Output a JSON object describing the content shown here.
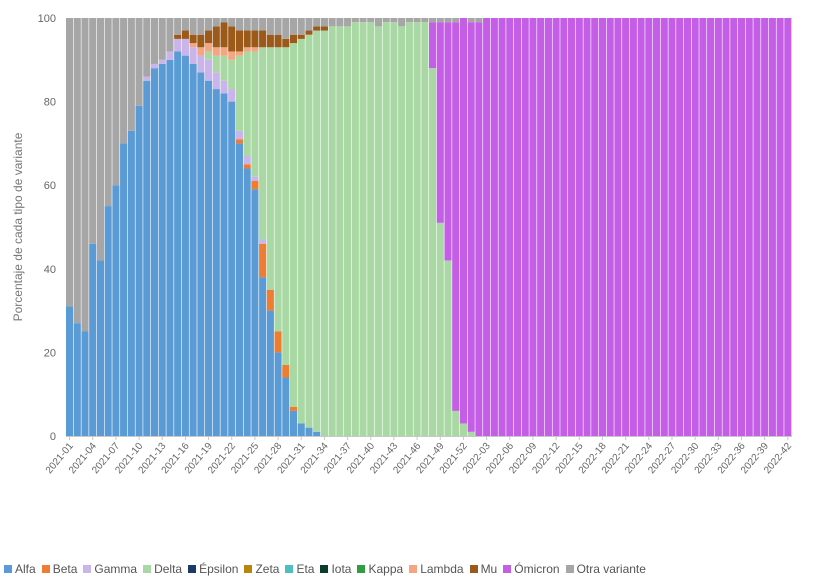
{
  "chart_data": {
    "type": "bar",
    "stacked": true,
    "ylabel": "Porcentaje de cada tipo de variante",
    "ylim": [
      0,
      100
    ],
    "yticks": [
      0,
      20,
      40,
      60,
      80,
      100
    ],
    "grid": false,
    "legend_position": "bottom",
    "weeks": [
      "2021-01",
      "2021-02",
      "2021-03",
      "2021-04",
      "2021-05",
      "2021-06",
      "2021-07",
      "2021-08",
      "2021-09",
      "2021-10",
      "2021-11",
      "2021-12",
      "2021-13",
      "2021-14",
      "2021-15",
      "2021-16",
      "2021-17",
      "2021-18",
      "2021-19",
      "2021-20",
      "2021-21",
      "2021-22",
      "2021-23",
      "2021-24",
      "2021-25",
      "2021-26",
      "2021-27",
      "2021-28",
      "2021-29",
      "2021-30",
      "2021-31",
      "2021-32",
      "2021-33",
      "2021-34",
      "2021-35",
      "2021-36",
      "2021-37",
      "2021-38",
      "2021-39",
      "2021-40",
      "2021-41",
      "2021-42",
      "2021-43",
      "2021-44",
      "2021-45",
      "2021-46",
      "2021-47",
      "2021-48",
      "2021-49",
      "2021-50",
      "2021-51",
      "2021-52",
      "2022-01",
      "2022-02",
      "2022-03",
      "2022-04",
      "2022-05",
      "2022-06",
      "2022-07",
      "2022-08",
      "2022-09",
      "2022-10",
      "2022-11",
      "2022-12",
      "2022-13",
      "2022-14",
      "2022-15",
      "2022-16",
      "2022-17",
      "2022-18",
      "2022-19",
      "2022-20",
      "2022-21",
      "2022-22",
      "2022-23",
      "2022-24",
      "2022-25",
      "2022-26",
      "2022-27",
      "2022-28",
      "2022-29",
      "2022-30",
      "2022-31",
      "2022-32",
      "2022-33",
      "2022-34",
      "2022-35",
      "2022-36",
      "2022-37",
      "2022-38",
      "2022-39",
      "2022-40",
      "2022-41",
      "2022-42"
    ],
    "tick_labels": [
      "2021-01",
      "2021-04",
      "2021-07",
      "2021-10",
      "2021-13",
      "2021-16",
      "2021-19",
      "2021-22",
      "2021-25",
      "2021-28",
      "2021-31",
      "2021-34",
      "2021-37",
      "2021-40",
      "2021-43",
      "2021-46",
      "2021-49",
      "2021-52",
      "2022-03",
      "2022-06",
      "2022-09",
      "2022-12",
      "2022-15",
      "2022-18",
      "2022-21",
      "2022-24",
      "2022-27",
      "2022-30",
      "2022-33",
      "2022-36",
      "2022-39",
      "2022-42"
    ],
    "series": [
      {
        "name": "Alfa",
        "color": "#5b9bd5",
        "values": [
          31,
          27,
          25,
          46,
          42,
          55,
          60,
          70,
          73,
          79,
          85,
          88,
          89,
          90,
          92,
          91,
          89,
          87,
          85,
          83,
          82,
          80,
          70,
          64,
          59,
          38,
          30,
          20,
          14,
          6,
          3,
          2,
          1,
          0,
          0,
          0,
          0,
          0,
          0,
          0,
          0,
          0,
          0,
          0,
          0,
          0,
          0,
          0,
          0,
          0,
          0,
          0,
          0,
          0,
          0,
          0,
          0,
          0,
          0,
          0,
          0,
          0,
          0,
          0,
          0,
          0,
          0,
          0,
          0,
          0,
          0,
          0,
          0,
          0,
          0,
          0,
          0,
          0,
          0,
          0,
          0,
          0,
          0,
          0,
          0,
          0,
          0,
          0,
          0,
          0,
          0,
          0,
          0,
          0
        ]
      },
      {
        "name": "Beta",
        "color": "#ed7d31",
        "values": [
          0,
          0,
          0,
          0,
          0,
          0,
          0,
          0,
          0,
          0,
          0,
          0,
          0,
          0,
          0,
          0,
          0,
          0,
          0,
          0,
          0,
          0,
          1,
          1,
          2,
          8,
          5,
          5,
          3,
          1,
          0,
          0,
          0,
          0,
          0,
          0,
          0,
          0,
          0,
          0,
          0,
          0,
          0,
          0,
          0,
          0,
          0,
          0,
          0,
          0,
          0,
          0,
          0,
          0,
          0,
          0,
          0,
          0,
          0,
          0,
          0,
          0,
          0,
          0,
          0,
          0,
          0,
          0,
          0,
          0,
          0,
          0,
          0,
          0,
          0,
          0,
          0,
          0,
          0,
          0,
          0,
          0,
          0,
          0,
          0,
          0,
          0,
          0,
          0,
          0,
          0,
          0,
          0,
          0
        ]
      },
      {
        "name": "Gamma",
        "color": "#c9b5ea",
        "values": [
          0,
          0,
          0,
          0,
          0,
          0,
          0,
          0,
          0,
          0,
          1,
          1,
          1,
          2,
          3,
          4,
          4,
          4,
          5,
          4,
          3,
          3,
          2,
          2,
          1,
          1,
          0,
          0,
          0,
          0,
          0,
          0,
          0,
          0,
          0,
          0,
          0,
          0,
          0,
          0,
          0,
          0,
          0,
          0,
          0,
          0,
          0,
          0,
          0,
          0,
          0,
          0,
          0,
          0,
          0,
          0,
          0,
          0,
          0,
          0,
          0,
          0,
          0,
          0,
          0,
          0,
          0,
          0,
          0,
          0,
          0,
          0,
          0,
          0,
          0,
          0,
          0,
          0,
          0,
          0,
          0,
          0,
          0,
          0,
          0,
          0,
          0,
          0,
          0,
          0,
          0,
          0,
          0,
          0
        ]
      },
      {
        "name": "Delta",
        "color": "#a9d8a4",
        "values": [
          0,
          0,
          0,
          0,
          0,
          0,
          0,
          0,
          0,
          0,
          0,
          0,
          0,
          0,
          0,
          0,
          0,
          0,
          2,
          4,
          6,
          7,
          18,
          25,
          30,
          46,
          58,
          68,
          76,
          87,
          92,
          94,
          96,
          97,
          98,
          98,
          98,
          99,
          99,
          99,
          98,
          99,
          99,
          98,
          99,
          99,
          99,
          88,
          51,
          42,
          6,
          3,
          1,
          0,
          0,
          0,
          0,
          0,
          0,
          0,
          0,
          0,
          0,
          0,
          0,
          0,
          0,
          0,
          0,
          0,
          0,
          0,
          0,
          0,
          0,
          0,
          0,
          0,
          0,
          0,
          0,
          0,
          0,
          0,
          0,
          0,
          0,
          0,
          0,
          0,
          0,
          0,
          0,
          0
        ]
      },
      {
        "name": "Épsilon",
        "color": "#1f3864",
        "values": [
          0,
          0,
          0,
          0,
          0,
          0,
          0,
          0,
          0,
          0,
          0,
          0,
          0,
          0,
          0,
          0,
          0,
          0,
          0,
          0,
          0,
          0,
          0,
          0,
          0,
          0,
          0,
          0,
          0,
          0,
          0,
          0,
          0,
          0,
          0,
          0,
          0,
          0,
          0,
          0,
          0,
          0,
          0,
          0,
          0,
          0,
          0,
          0,
          0,
          0,
          0,
          0,
          0,
          0,
          0,
          0,
          0,
          0,
          0,
          0,
          0,
          0,
          0,
          0,
          0,
          0,
          0,
          0,
          0,
          0,
          0,
          0,
          0,
          0,
          0,
          0,
          0,
          0,
          0,
          0,
          0,
          0,
          0,
          0,
          0,
          0,
          0,
          0,
          0,
          0,
          0,
          0,
          0,
          0
        ]
      },
      {
        "name": "Zeta",
        "color": "#b8860b",
        "values": [
          0,
          0,
          0,
          0,
          0,
          0,
          0,
          0,
          0,
          0,
          0,
          0,
          0,
          0,
          0,
          0,
          0,
          0,
          0,
          0,
          0,
          0,
          0,
          0,
          0,
          0,
          0,
          0,
          0,
          0,
          0,
          0,
          0,
          0,
          0,
          0,
          0,
          0,
          0,
          0,
          0,
          0,
          0,
          0,
          0,
          0,
          0,
          0,
          0,
          0,
          0,
          0,
          0,
          0,
          0,
          0,
          0,
          0,
          0,
          0,
          0,
          0,
          0,
          0,
          0,
          0,
          0,
          0,
          0,
          0,
          0,
          0,
          0,
          0,
          0,
          0,
          0,
          0,
          0,
          0,
          0,
          0,
          0,
          0,
          0,
          0,
          0,
          0,
          0,
          0,
          0,
          0,
          0,
          0
        ]
      },
      {
        "name": "Eta",
        "color": "#4bc0c0",
        "values": [
          0,
          0,
          0,
          0,
          0,
          0,
          0,
          0,
          0,
          0,
          0,
          0,
          0,
          0,
          0,
          0,
          0,
          0,
          0,
          0,
          0,
          0,
          0,
          0,
          0,
          0,
          0,
          0,
          0,
          0,
          0,
          0,
          0,
          0,
          0,
          0,
          0,
          0,
          0,
          0,
          0,
          0,
          0,
          0,
          0,
          0,
          0,
          0,
          0,
          0,
          0,
          0,
          0,
          0,
          0,
          0,
          0,
          0,
          0,
          0,
          0,
          0,
          0,
          0,
          0,
          0,
          0,
          0,
          0,
          0,
          0,
          0,
          0,
          0,
          0,
          0,
          0,
          0,
          0,
          0,
          0,
          0,
          0,
          0,
          0,
          0,
          0,
          0,
          0,
          0,
          0,
          0,
          0,
          0
        ]
      },
      {
        "name": "Iota",
        "color": "#0b3d2e",
        "values": [
          0,
          0,
          0,
          0,
          0,
          0,
          0,
          0,
          0,
          0,
          0,
          0,
          0,
          0,
          0,
          0,
          0,
          0,
          0,
          0,
          0,
          0,
          0,
          0,
          0,
          0,
          0,
          0,
          0,
          0,
          0,
          0,
          0,
          0,
          0,
          0,
          0,
          0,
          0,
          0,
          0,
          0,
          0,
          0,
          0,
          0,
          0,
          0,
          0,
          0,
          0,
          0,
          0,
          0,
          0,
          0,
          0,
          0,
          0,
          0,
          0,
          0,
          0,
          0,
          0,
          0,
          0,
          0,
          0,
          0,
          0,
          0,
          0,
          0,
          0,
          0,
          0,
          0,
          0,
          0,
          0,
          0,
          0,
          0,
          0,
          0,
          0,
          0,
          0,
          0,
          0,
          0,
          0,
          0
        ]
      },
      {
        "name": "Kappa",
        "color": "#2e9e3e",
        "values": [
          0,
          0,
          0,
          0,
          0,
          0,
          0,
          0,
          0,
          0,
          0,
          0,
          0,
          0,
          0,
          0,
          0,
          0,
          0,
          0,
          0,
          0,
          0,
          0,
          0,
          0,
          0,
          0,
          0,
          0,
          0,
          0,
          0,
          0,
          0,
          0,
          0,
          0,
          0,
          0,
          0,
          0,
          0,
          0,
          0,
          0,
          0,
          0,
          0,
          0,
          0,
          0,
          0,
          0,
          0,
          0,
          0,
          0,
          0,
          0,
          0,
          0,
          0,
          0,
          0,
          0,
          0,
          0,
          0,
          0,
          0,
          0,
          0,
          0,
          0,
          0,
          0,
          0,
          0,
          0,
          0,
          0,
          0,
          0,
          0,
          0,
          0,
          0,
          0,
          0,
          0,
          0,
          0,
          0
        ]
      },
      {
        "name": "Lambda",
        "color": "#f4a582",
        "values": [
          0,
          0,
          0,
          0,
          0,
          0,
          0,
          0,
          0,
          0,
          0,
          0,
          0,
          0,
          0,
          0,
          1,
          2,
          2,
          2,
          2,
          2,
          1,
          1,
          1,
          0,
          0,
          0,
          0,
          0,
          0,
          0,
          0,
          0,
          0,
          0,
          0,
          0,
          0,
          0,
          0,
          0,
          0,
          0,
          0,
          0,
          0,
          0,
          0,
          0,
          0,
          0,
          0,
          0,
          0,
          0,
          0,
          0,
          0,
          0,
          0,
          0,
          0,
          0,
          0,
          0,
          0,
          0,
          0,
          0,
          0,
          0,
          0,
          0,
          0,
          0,
          0,
          0,
          0,
          0,
          0,
          0,
          0,
          0,
          0,
          0,
          0,
          0,
          0,
          0,
          0,
          0,
          0,
          0
        ]
      },
      {
        "name": "Mu",
        "color": "#9c5a1a",
        "values": [
          0,
          0,
          0,
          0,
          0,
          0,
          0,
          0,
          0,
          0,
          0,
          0,
          0,
          0,
          1,
          2,
          2,
          3,
          3,
          5,
          6,
          6,
          5,
          4,
          4,
          4,
          3,
          3,
          2,
          2,
          1,
          1,
          1,
          1,
          0,
          0,
          0,
          0,
          0,
          0,
          0,
          0,
          0,
          0,
          0,
          0,
          0,
          0,
          0,
          0,
          0,
          0,
          0,
          0,
          0,
          0,
          0,
          0,
          0,
          0,
          0,
          0,
          0,
          0,
          0,
          0,
          0,
          0,
          0,
          0,
          0,
          0,
          0,
          0,
          0,
          0,
          0,
          0,
          0,
          0,
          0,
          0,
          0,
          0,
          0,
          0,
          0,
          0,
          0,
          0,
          0,
          0,
          0,
          0
        ]
      },
      {
        "name": "Ómicron",
        "color": "#c55ee6",
        "values": [
          0,
          0,
          0,
          0,
          0,
          0,
          0,
          0,
          0,
          0,
          0,
          0,
          0,
          0,
          0,
          0,
          0,
          0,
          0,
          0,
          0,
          0,
          0,
          0,
          0,
          0,
          0,
          0,
          0,
          0,
          0,
          0,
          0,
          0,
          0,
          0,
          0,
          0,
          0,
          0,
          0,
          0,
          0,
          0,
          0,
          0,
          0,
          11,
          48,
          57,
          93,
          97,
          98,
          99,
          100,
          100,
          100,
          100,
          100,
          100,
          100,
          100,
          100,
          100,
          100,
          100,
          100,
          100,
          100,
          100,
          100,
          100,
          100,
          100,
          100,
          100,
          100,
          100,
          100,
          100,
          100,
          100,
          100,
          100,
          100,
          100,
          100,
          100,
          100,
          100,
          100,
          100,
          100,
          100
        ]
      },
      {
        "name": "Otra variante",
        "color": "#a6a6a6",
        "values": [
          69,
          73,
          75,
          54,
          58,
          45,
          40,
          30,
          27,
          21,
          14,
          11,
          10,
          8,
          4,
          3,
          4,
          4,
          3,
          2,
          1,
          2,
          3,
          3,
          3,
          3,
          4,
          4,
          5,
          4,
          4,
          3,
          2,
          2,
          2,
          2,
          2,
          1,
          1,
          1,
          2,
          1,
          1,
          2,
          1,
          1,
          1,
          1,
          1,
          1,
          1,
          0,
          1,
          1,
          0,
          0,
          0,
          0,
          0,
          0,
          0,
          0,
          0,
          0,
          0,
          0,
          0,
          0,
          0,
          0,
          0,
          0,
          0,
          0,
          0,
          0,
          0,
          0,
          0,
          0,
          0,
          0,
          0,
          0,
          0,
          0,
          0,
          0,
          0,
          0,
          0,
          0,
          0,
          0
        ]
      }
    ]
  }
}
